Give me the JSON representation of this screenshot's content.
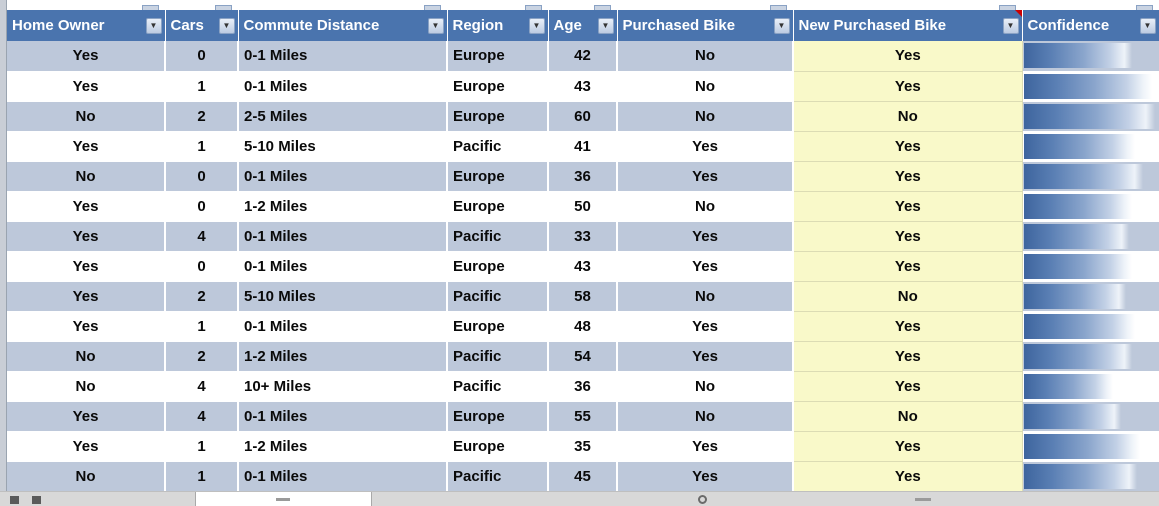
{
  "colors": {
    "header_bg": "#4a74ae",
    "band_bg": "#bdc8da",
    "highlight_bg": "#f9f9c9",
    "highlight_border": "#dcdcb4",
    "bar_dark": "#3e659e"
  },
  "icons": {
    "filter_dropdown": "▼"
  },
  "header": {
    "columns": [
      {
        "label": "Home Owner"
      },
      {
        "label": "Cars"
      },
      {
        "label": "Commute Distance"
      },
      {
        "label": "Region"
      },
      {
        "label": "Age"
      },
      {
        "label": "Purchased Bike"
      },
      {
        "label": "New Purchased Bike",
        "comment_indicator": true
      },
      {
        "label": "Confidence"
      }
    ]
  },
  "rows": [
    {
      "cells": [
        "Yes",
        "0",
        "0-1 Miles",
        "Europe",
        "42",
        "No"
      ],
      "new_purchased_bike": "Yes",
      "confidence_pct": 80
    },
    {
      "cells": [
        "Yes",
        "1",
        "0-1 Miles",
        "Europe",
        "43",
        "No"
      ],
      "new_purchased_bike": "Yes",
      "confidence_pct": 95
    },
    {
      "cells": [
        "No",
        "2",
        "2-5 Miles",
        "Europe",
        "60",
        "No"
      ],
      "new_purchased_bike": "No",
      "confidence_pct": 97
    },
    {
      "cells": [
        "Yes",
        "1",
        "5-10 Miles",
        "Pacific",
        "41",
        "Yes"
      ],
      "new_purchased_bike": "Yes",
      "confidence_pct": 82
    },
    {
      "cells": [
        "No",
        "0",
        "0-1 Miles",
        "Europe",
        "36",
        "Yes"
      ],
      "new_purchased_bike": "Yes",
      "confidence_pct": 88
    },
    {
      "cells": [
        "Yes",
        "0",
        "1-2 Miles",
        "Europe",
        "50",
        "No"
      ],
      "new_purchased_bike": "Yes",
      "confidence_pct": 80
    },
    {
      "cells": [
        "Yes",
        "4",
        "0-1 Miles",
        "Pacific",
        "33",
        "Yes"
      ],
      "new_purchased_bike": "Yes",
      "confidence_pct": 78
    },
    {
      "cells": [
        "Yes",
        "0",
        "0-1 Miles",
        "Europe",
        "43",
        "Yes"
      ],
      "new_purchased_bike": "Yes",
      "confidence_pct": 80
    },
    {
      "cells": [
        "Yes",
        "2",
        "5-10 Miles",
        "Pacific",
        "58",
        "No"
      ],
      "new_purchased_bike": "No",
      "confidence_pct": 76
    },
    {
      "cells": [
        "Yes",
        "1",
        "0-1 Miles",
        "Europe",
        "48",
        "Yes"
      ],
      "new_purchased_bike": "Yes",
      "confidence_pct": 82
    },
    {
      "cells": [
        "No",
        "2",
        "1-2 Miles",
        "Pacific",
        "54",
        "Yes"
      ],
      "new_purchased_bike": "Yes",
      "confidence_pct": 80
    },
    {
      "cells": [
        "No",
        "4",
        "10+ Miles",
        "Pacific",
        "36",
        "No"
      ],
      "new_purchased_bike": "Yes",
      "confidence_pct": 66
    },
    {
      "cells": [
        "Yes",
        "4",
        "0-1 Miles",
        "Europe",
        "55",
        "No"
      ],
      "new_purchased_bike": "No",
      "confidence_pct": 72
    },
    {
      "cells": [
        "Yes",
        "1",
        "1-2 Miles",
        "Europe",
        "35",
        "Yes"
      ],
      "new_purchased_bike": "Yes",
      "confidence_pct": 86
    },
    {
      "cells": [
        "No",
        "1",
        "0-1 Miles",
        "Pacific",
        "45",
        "Yes"
      ],
      "new_purchased_bike": "Yes",
      "confidence_pct": 84
    }
  ]
}
